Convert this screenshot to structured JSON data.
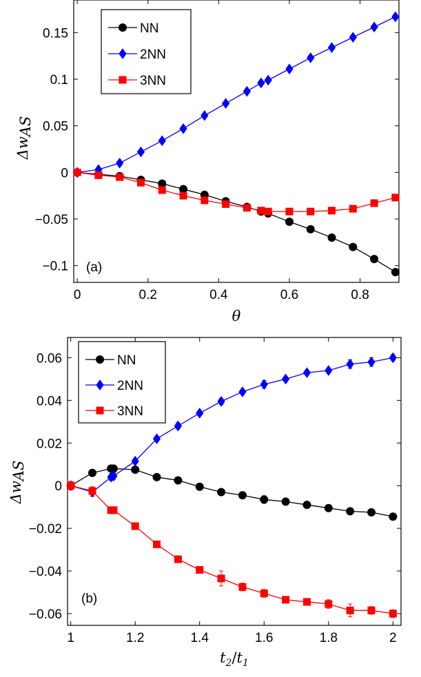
{
  "chart_data": [
    {
      "type": "line",
      "panel_label": "(a)",
      "xlabel": "θ",
      "ylabel_main": "Δw",
      "ylabel_sub": "AS",
      "xlim": [
        -0.01,
        0.91
      ],
      "ylim": [
        -0.118,
        0.185
      ],
      "xticks": [
        0,
        0.2,
        0.4,
        0.6,
        0.8
      ],
      "xtick_labels": [
        "0",
        "0.2",
        "0.4",
        "0.6",
        "0.8"
      ],
      "yticks": [
        0.15,
        0.1,
        0.05,
        0,
        -0.05,
        -0.1
      ],
      "ytick_labels": [
        "0.15",
        "0.1",
        "0.05",
        "0",
        "−0.05",
        "−0.1"
      ],
      "legend_position": "top-left",
      "series": [
        {
          "name": "NN",
          "color": "#000000",
          "marker": "circle",
          "x": [
            0,
            0.06,
            0.12,
            0.18,
            0.24,
            0.3,
            0.36,
            0.42,
            0.48,
            0.52,
            0.54,
            0.6,
            0.66,
            0.72,
            0.78,
            0.84,
            0.9
          ],
          "y": [
            0,
            -0.002,
            -0.004,
            -0.008,
            -0.012,
            -0.018,
            -0.024,
            -0.031,
            -0.037,
            -0.042,
            -0.044,
            -0.053,
            -0.061,
            -0.07,
            -0.08,
            -0.093,
            -0.107
          ]
        },
        {
          "name": "2NN",
          "color": "#0000ff",
          "marker": "diamond",
          "x": [
            0,
            0.06,
            0.12,
            0.18,
            0.24,
            0.3,
            0.36,
            0.42,
            0.48,
            0.52,
            0.54,
            0.6,
            0.66,
            0.72,
            0.78,
            0.84,
            0.9
          ],
          "y": [
            0,
            0.003,
            0.01,
            0.022,
            0.034,
            0.047,
            0.061,
            0.074,
            0.087,
            0.096,
            0.099,
            0.111,
            0.123,
            0.134,
            0.145,
            0.156,
            0.167
          ]
        },
        {
          "name": "3NN",
          "color": "#ff0000",
          "marker": "square",
          "x": [
            0,
            0.06,
            0.12,
            0.18,
            0.24,
            0.3,
            0.36,
            0.42,
            0.48,
            0.52,
            0.54,
            0.6,
            0.66,
            0.72,
            0.78,
            0.84,
            0.9
          ],
          "y": [
            0,
            -0.003,
            -0.005,
            -0.011,
            -0.019,
            -0.025,
            -0.03,
            -0.034,
            -0.038,
            -0.041,
            -0.042,
            -0.042,
            -0.042,
            -0.041,
            -0.039,
            -0.033,
            -0.027
          ]
        }
      ]
    },
    {
      "type": "line",
      "panel_label": "(b)",
      "xlabel_main": "t",
      "xlabel_num_sub": "2",
      "xlabel_den": "t",
      "xlabel_den_sub": "1",
      "ylabel_main": "Δw",
      "ylabel_sub": "AS",
      "xlim": [
        0.99,
        2.025
      ],
      "ylim": [
        -0.0655,
        0.0695
      ],
      "xticks": [
        1,
        1.2,
        1.4,
        1.6,
        1.8,
        2
      ],
      "xtick_labels": [
        "1",
        "1.2",
        "1.4",
        "1.6",
        "1.8",
        "2"
      ],
      "yticks": [
        0.06,
        0.04,
        0.02,
        0,
        -0.02,
        -0.04,
        -0.06
      ],
      "ytick_labels": [
        "0.06",
        "0.04",
        "0.02",
        "0",
        "−0.02",
        "−0.04",
        "−0.06"
      ],
      "legend_position": "top-left",
      "series": [
        {
          "name": "NN",
          "color": "#000000",
          "marker": "circle",
          "x": [
            1.0,
            1.067,
            1.125,
            1.133,
            1.2,
            1.267,
            1.333,
            1.4,
            1.467,
            1.533,
            1.6,
            1.667,
            1.733,
            1.8,
            1.867,
            1.933,
            2.0
          ],
          "y": [
            0.0,
            0.006,
            0.008,
            0.008,
            0.0075,
            0.004,
            0.0025,
            -0.0005,
            -0.003,
            -0.0045,
            -0.0065,
            -0.0075,
            -0.009,
            -0.0105,
            -0.012,
            -0.0125,
            -0.0145
          ],
          "err": [
            0.001,
            0.001,
            0.001,
            0.001,
            0.0012,
            0.001,
            0.0015,
            0.001,
            0.001,
            0.001,
            0.0018,
            0.001,
            0.001,
            0.001,
            0.001,
            0.0015,
            0.001
          ]
        },
        {
          "name": "2NN",
          "color": "#0000ff",
          "marker": "diamond",
          "x": [
            1.0,
            1.067,
            1.125,
            1.133,
            1.2,
            1.267,
            1.333,
            1.4,
            1.467,
            1.533,
            1.6,
            1.667,
            1.733,
            1.8,
            1.867,
            1.933,
            2.0
          ],
          "y": [
            0.0,
            -0.003,
            0.004,
            0.0045,
            0.0115,
            0.022,
            0.028,
            0.034,
            0.0395,
            0.044,
            0.0475,
            0.05,
            0.053,
            0.054,
            0.057,
            0.058,
            0.06
          ],
          "err": [
            0.002,
            0.002,
            0.0015,
            0.0015,
            0.0012,
            0.0012,
            0.0015,
            0.0012,
            0.0015,
            0.0012,
            0.0018,
            0.0012,
            0.0012,
            0.0012,
            0.002,
            0.002,
            0.0015
          ]
        },
        {
          "name": "3NN",
          "color": "#ff0000",
          "marker": "square",
          "x": [
            1.0,
            1.067,
            1.125,
            1.133,
            1.2,
            1.267,
            1.333,
            1.4,
            1.467,
            1.533,
            1.6,
            1.667,
            1.733,
            1.8,
            1.867,
            1.933,
            2.0
          ],
          "y": [
            0.0,
            -0.0025,
            -0.0115,
            -0.0115,
            -0.019,
            -0.0275,
            -0.0345,
            -0.0395,
            -0.0435,
            -0.0475,
            -0.0505,
            -0.0535,
            -0.0545,
            -0.0555,
            -0.0585,
            -0.0585,
            -0.06
          ],
          "err": [
            0.002,
            0.002,
            0.0015,
            0.0015,
            0.0012,
            0.001,
            0.0015,
            0.0015,
            0.0035,
            0.0018,
            0.0018,
            0.0015,
            0.0015,
            0.002,
            0.003,
            0.0018,
            0.0018
          ]
        }
      ]
    }
  ]
}
